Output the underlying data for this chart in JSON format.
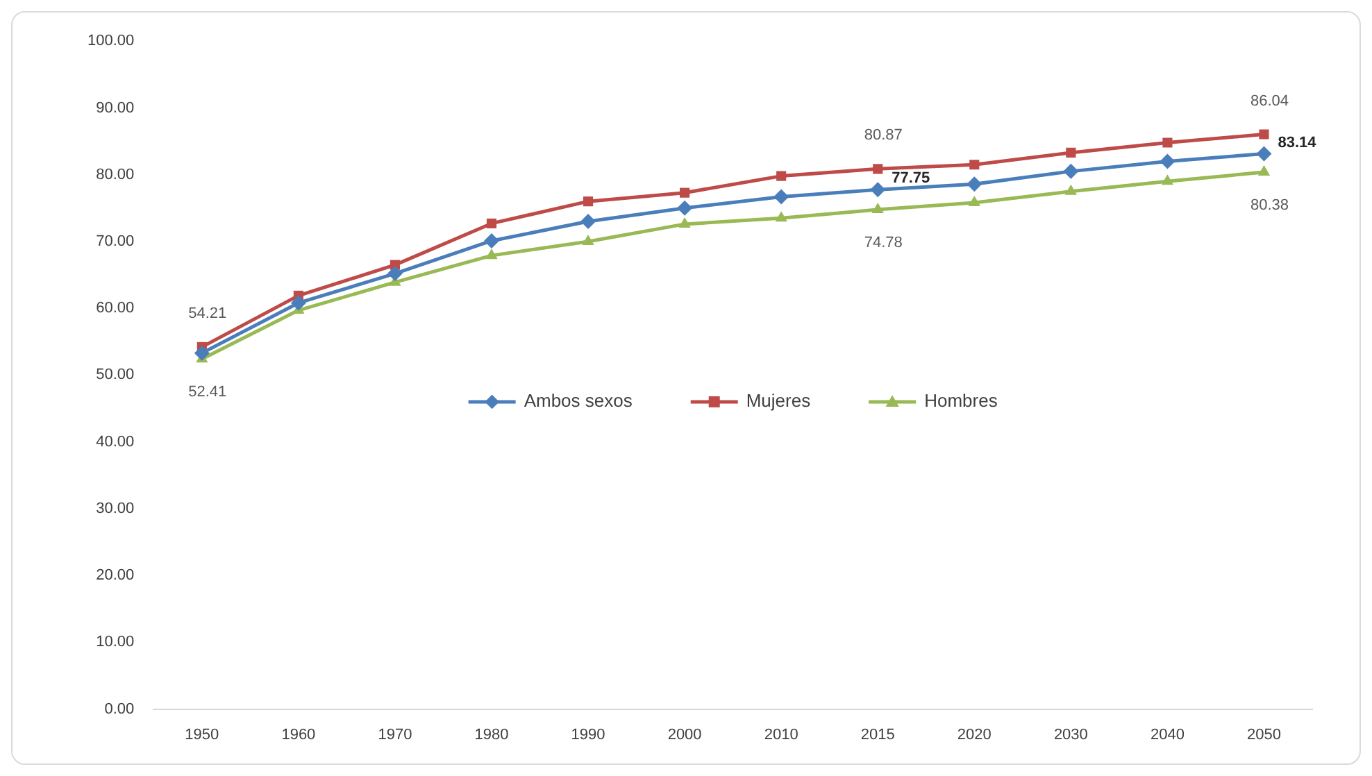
{
  "chart_data": {
    "type": "line",
    "categories": [
      "1950",
      "1960",
      "1970",
      "1980",
      "1990",
      "2000",
      "2010",
      "2015",
      "2020",
      "2030",
      "2040",
      "2050"
    ],
    "series": [
      {
        "name": "Ambos sexos",
        "color": "#4a7ebb",
        "marker": "diamond",
        "values": [
          53.3,
          60.8,
          65.2,
          70.1,
          73.0,
          75.0,
          76.7,
          77.75,
          78.6,
          80.5,
          82.0,
          83.14
        ],
        "value_labels": [
          null,
          null,
          null,
          null,
          null,
          null,
          null,
          "77.75",
          null,
          null,
          null,
          "83.14"
        ]
      },
      {
        "name": "Mujeres",
        "color": "#be4b48",
        "marker": "square",
        "values": [
          54.21,
          61.9,
          66.5,
          72.7,
          76.0,
          77.3,
          79.8,
          80.87,
          81.5,
          83.3,
          84.8,
          86.04
        ],
        "value_labels": [
          "54.21",
          null,
          null,
          null,
          null,
          null,
          null,
          "80.87",
          null,
          null,
          null,
          "86.04"
        ]
      },
      {
        "name": "Hombres",
        "color": "#98b954",
        "marker": "triangle",
        "values": [
          52.41,
          59.7,
          63.9,
          67.9,
          70.0,
          72.6,
          73.5,
          74.78,
          75.8,
          77.5,
          79.0,
          80.38
        ],
        "value_labels": [
          "52.41",
          null,
          null,
          null,
          null,
          null,
          null,
          "74.78",
          null,
          null,
          null,
          "80.38"
        ]
      }
    ],
    "ylim": [
      0,
      100
    ],
    "yticks": [
      {
        "value": 0,
        "label": "0.00"
      },
      {
        "value": 10,
        "label": "10.00"
      },
      {
        "value": 20,
        "label": "20.00"
      },
      {
        "value": 30,
        "label": "30.00"
      },
      {
        "value": 40,
        "label": "40.00"
      },
      {
        "value": 50,
        "label": "50.00"
      },
      {
        "value": 60,
        "label": "60.00"
      },
      {
        "value": 70,
        "label": "70.00"
      },
      {
        "value": 80,
        "label": "80.00"
      },
      {
        "value": 90,
        "label": "90.00"
      },
      {
        "value": 100,
        "label": "100.00"
      }
    ],
    "legend": "center"
  }
}
